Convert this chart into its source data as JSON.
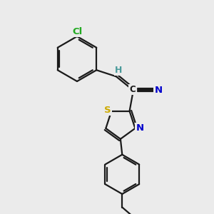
{
  "bg_color": "#ebebeb",
  "bond_color": "#1a1a1a",
  "bond_width": 1.6,
  "figsize": [
    3.0,
    3.0
  ],
  "dpi": 100,
  "atom_colors": {
    "Cl": "#22aa22",
    "H": "#4a9a9a",
    "C": "#1a1a1a",
    "N": "#0000cc",
    "S": "#ccaa00"
  }
}
